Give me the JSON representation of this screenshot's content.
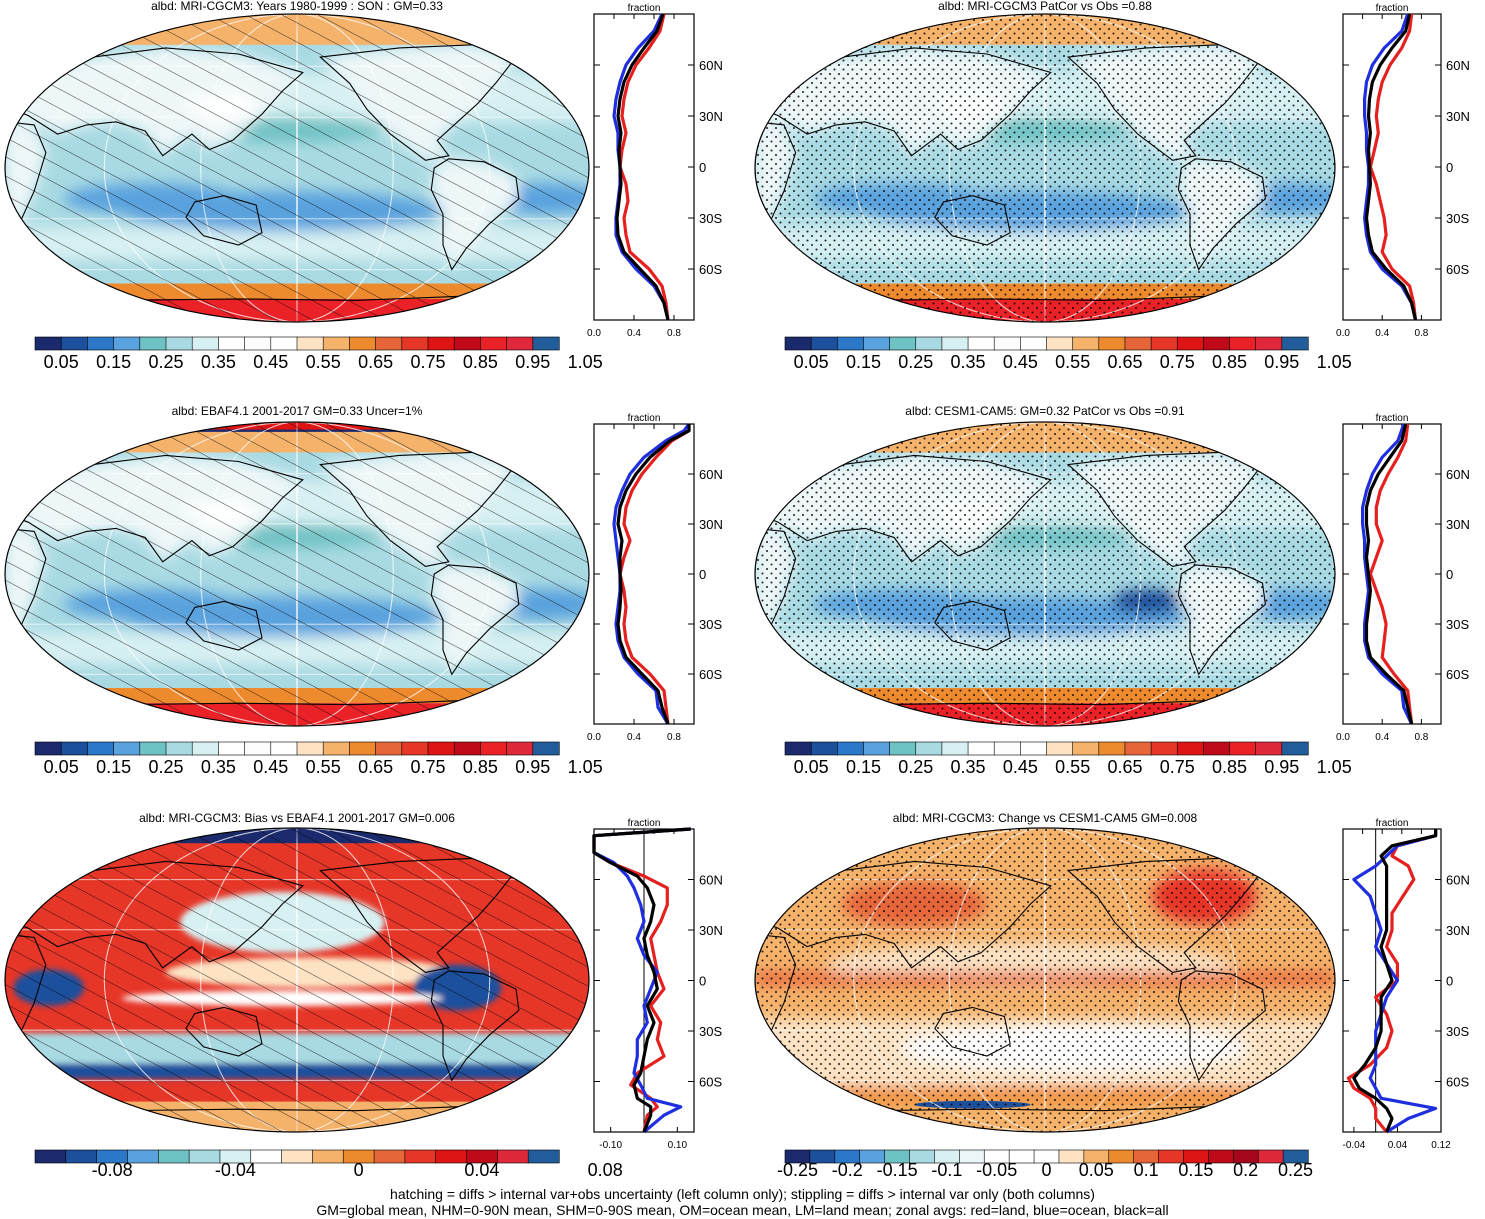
{
  "chart_data": [
    {
      "type": "heatmap",
      "title": "albd: MRI-CGCM3: Years 1980-1999 : SON : GM=0.33",
      "overlay": "hatching",
      "style": "abs",
      "colorbar": {
        "labels": [
          "0.05",
          "0.15",
          "0.25",
          "0.35",
          "0.45",
          "0.55",
          "0.65",
          "0.75",
          "0.85",
          "0.95",
          "1.05"
        ]
      },
      "zonal": {
        "type": "line",
        "title": "fraction",
        "xticks": [
          "0.0",
          "0.4",
          "0.8"
        ],
        "xlim": [
          0.0,
          1.0
        ],
        "yticks": [
          "60N",
          "30N",
          "0",
          "30S",
          "60S"
        ],
        "lat": [
          -90,
          -80,
          -70,
          -60,
          -50,
          -40,
          -30,
          -20,
          -10,
          0,
          10,
          20,
          30,
          40,
          50,
          60,
          70,
          80,
          90
        ],
        "series": [
          {
            "color": "#e6201f",
            "values": [
              0.74,
              0.72,
              0.68,
              0.55,
              0.36,
              0.32,
              0.3,
              0.34,
              0.32,
              0.26,
              0.28,
              0.32,
              0.28,
              0.3,
              0.34,
              0.42,
              0.55,
              0.66,
              0.7
            ]
          },
          {
            "color": "#1f2fe0",
            "values": [
              0.74,
              0.7,
              0.6,
              0.42,
              0.28,
              0.22,
              0.22,
              0.24,
              0.26,
              0.26,
              0.24,
              0.24,
              0.2,
              0.22,
              0.26,
              0.32,
              0.44,
              0.6,
              0.68
            ]
          },
          {
            "color": "#000000",
            "values": [
              0.74,
              0.7,
              0.62,
              0.46,
              0.3,
              0.24,
              0.23,
              0.25,
              0.27,
              0.26,
              0.25,
              0.27,
              0.24,
              0.26,
              0.3,
              0.38,
              0.5,
              0.63,
              0.69
            ]
          }
        ]
      }
    },
    {
      "type": "heatmap",
      "title": "albd: MRI-CGCM3 PatCor vs Obs =0.88",
      "overlay": "stipple",
      "style": "abs",
      "colorbar": {
        "labels": [
          "0.05",
          "0.15",
          "0.25",
          "0.35",
          "0.45",
          "0.55",
          "0.65",
          "0.75",
          "0.85",
          "0.95",
          "1.05"
        ]
      },
      "zonal": {
        "type": "line",
        "title": "fraction",
        "xticks": [
          "0.0",
          "0.4",
          "0.8"
        ],
        "xlim": [
          0.0,
          1.0
        ],
        "yticks": [
          "60N",
          "30N",
          "0",
          "30S",
          "60S"
        ],
        "lat": [
          -90,
          -80,
          -70,
          -60,
          -50,
          -40,
          -30,
          -20,
          -10,
          0,
          10,
          20,
          30,
          40,
          50,
          60,
          70,
          80,
          90
        ],
        "series": [
          {
            "color": "#e6201f",
            "values": [
              0.74,
              0.72,
              0.68,
              0.5,
              0.4,
              0.44,
              0.42,
              0.38,
              0.34,
              0.28,
              0.32,
              0.36,
              0.34,
              0.36,
              0.4,
              0.48,
              0.6,
              0.68,
              0.7
            ]
          },
          {
            "color": "#1f2fe0",
            "values": [
              0.74,
              0.7,
              0.6,
              0.4,
              0.28,
              0.24,
              0.22,
              0.24,
              0.26,
              0.26,
              0.24,
              0.24,
              0.22,
              0.22,
              0.24,
              0.3,
              0.42,
              0.6,
              0.66
            ]
          },
          {
            "color": "#000000",
            "values": [
              0.74,
              0.7,
              0.62,
              0.44,
              0.3,
              0.26,
              0.24,
              0.26,
              0.28,
              0.27,
              0.26,
              0.28,
              0.26,
              0.27,
              0.3,
              0.38,
              0.5,
              0.64,
              0.68
            ]
          }
        ]
      }
    },
    {
      "type": "heatmap",
      "title": "albd: EBAF4.1 2001-2017 GM=0.33 Uncer=1%",
      "overlay": "hatching",
      "style": "abs",
      "colorbar": {
        "labels": [
          "0.05",
          "0.15",
          "0.25",
          "0.35",
          "0.45",
          "0.55",
          "0.65",
          "0.75",
          "0.85",
          "0.95",
          "1.05"
        ]
      },
      "zonal": {
        "type": "line",
        "title": "fraction",
        "xticks": [
          "0.0",
          "0.4",
          "0.8"
        ],
        "xlim": [
          0.0,
          1.0
        ],
        "yticks": [
          "60N",
          "30N",
          "0",
          "30S",
          "60S"
        ],
        "lat": [
          -90,
          -80,
          -70,
          -60,
          -50,
          -40,
          -30,
          -20,
          -10,
          0,
          10,
          20,
          30,
          40,
          50,
          60,
          70,
          80,
          86,
          90
        ],
        "series": [
          {
            "color": "#e6201f",
            "values": [
              0.74,
              0.72,
              0.7,
              0.56,
              0.38,
              0.32,
              0.3,
              0.32,
              0.3,
              0.26,
              0.3,
              0.36,
              0.3,
              0.32,
              0.38,
              0.48,
              0.62,
              0.78,
              0.95,
              0.95
            ]
          },
          {
            "color": "#1f2fe0",
            "values": [
              0.74,
              0.64,
              0.62,
              0.44,
              0.3,
              0.24,
              0.22,
              0.24,
              0.26,
              0.26,
              0.24,
              0.22,
              0.2,
              0.22,
              0.28,
              0.36,
              0.5,
              0.72,
              0.9,
              0.95
            ]
          },
          {
            "color": "#000000",
            "values": [
              0.74,
              0.68,
              0.64,
              0.48,
              0.32,
              0.26,
              0.24,
              0.26,
              0.27,
              0.26,
              0.26,
              0.28,
              0.24,
              0.26,
              0.32,
              0.42,
              0.56,
              0.76,
              0.95,
              0.95
            ]
          }
        ]
      }
    },
    {
      "type": "heatmap",
      "title": "albd: CESM1-CAM5: GM=0.32 PatCor vs Obs =0.91",
      "overlay": "stipple",
      "style": "abs",
      "colorbar": {
        "labels": [
          "0.05",
          "0.15",
          "0.25",
          "0.35",
          "0.45",
          "0.55",
          "0.65",
          "0.75",
          "0.85",
          "0.95",
          "1.05"
        ]
      },
      "zonal": {
        "type": "line",
        "title": "fraction",
        "xticks": [
          "0.0",
          "0.4",
          "0.8"
        ],
        "xlim": [
          0.0,
          1.0
        ],
        "yticks": [
          "60N",
          "30N",
          "0",
          "30S",
          "60S"
        ],
        "lat": [
          -90,
          -80,
          -70,
          -60,
          -50,
          -40,
          -30,
          -20,
          -10,
          0,
          10,
          20,
          30,
          40,
          50,
          60,
          70,
          80,
          90
        ],
        "series": [
          {
            "color": "#e6201f",
            "values": [
              0.7,
              0.68,
              0.66,
              0.52,
              0.4,
              0.42,
              0.44,
              0.4,
              0.34,
              0.28,
              0.34,
              0.4,
              0.34,
              0.34,
              0.38,
              0.46,
              0.56,
              0.64,
              0.66
            ]
          },
          {
            "color": "#1f2fe0",
            "values": [
              0.7,
              0.62,
              0.6,
              0.4,
              0.26,
              0.22,
              0.22,
              0.24,
              0.26,
              0.24,
              0.22,
              0.22,
              0.2,
              0.2,
              0.24,
              0.3,
              0.4,
              0.56,
              0.62
            ]
          },
          {
            "color": "#000000",
            "values": [
              0.7,
              0.66,
              0.62,
              0.44,
              0.28,
              0.24,
              0.24,
              0.26,
              0.28,
              0.26,
              0.24,
              0.26,
              0.24,
              0.24,
              0.28,
              0.36,
              0.48,
              0.6,
              0.64
            ]
          }
        ]
      }
    },
    {
      "type": "heatmap",
      "title": "albd: MRI-CGCM3: Bias vs EBAF4.1 2001-2017  GM=0.006",
      "overlay": "hatching",
      "style": "bias",
      "colorbar": {
        "labels": [
          "-0.08",
          "-0.04",
          "0",
          "0.04",
          "0.08"
        ]
      },
      "zonal": {
        "type": "line",
        "title": "fraction",
        "xticks": [
          "-0.10",
          "0.10"
        ],
        "xlim": [
          -0.15,
          0.15
        ],
        "yticks": [
          "60N",
          "30N",
          "0",
          "30S",
          "60S"
        ],
        "lat": [
          -90,
          -80,
          -75,
          -70,
          -62,
          -55,
          -45,
          -35,
          -25,
          -15,
          -5,
          5,
          15,
          25,
          35,
          45,
          55,
          62,
          70,
          76,
          80,
          86,
          90
        ],
        "series": [
          {
            "color": "#e6201f",
            "values": [
              0.0,
              0.01,
              0.04,
              0.02,
              -0.04,
              -0.02,
              0.06,
              0.04,
              0.05,
              0.02,
              0.06,
              0.04,
              0.03,
              0.02,
              0.05,
              0.07,
              0.07,
              0.0,
              -0.1,
              -0.15,
              -0.16,
              -0.15,
              0.14
            ]
          },
          {
            "color": "#1f2fe0",
            "values": [
              0.0,
              0.06,
              0.11,
              0.01,
              -0.01,
              -0.03,
              -0.02,
              -0.02,
              0.01,
              0.0,
              0.02,
              0.04,
              0.0,
              -0.02,
              0.0,
              -0.01,
              -0.03,
              -0.05,
              -0.09,
              -0.15,
              -0.16,
              -0.15,
              0.14
            ]
          },
          {
            "color": "#000000",
            "values": [
              0.0,
              0.02,
              0.02,
              -0.02,
              -0.03,
              -0.01,
              0.0,
              0.01,
              0.03,
              0.01,
              0.04,
              0.03,
              0.01,
              0.0,
              0.02,
              0.03,
              0.01,
              -0.02,
              -0.1,
              -0.15,
              -0.16,
              -0.15,
              0.14
            ]
          }
        ]
      }
    },
    {
      "type": "heatmap",
      "title": "albd: MRI-CGCM3: Change vs CESM1-CAM5 GM=0.008",
      "overlay": "stipple",
      "style": "change",
      "colorbar": {
        "labels": [
          "-0.25",
          "-0.2",
          "-0.15",
          "-0.1",
          "-0.05",
          "0",
          "0.05",
          "0.1",
          "0.15",
          "0.2",
          "0.25"
        ]
      },
      "zonal": {
        "type": "line",
        "title": "fraction",
        "xticks": [
          "-0.04",
          "0.04",
          "0.12"
        ],
        "xlim": [
          -0.06,
          0.12
        ],
        "yticks": [
          "60N",
          "30N",
          "0",
          "30S",
          "60S"
        ],
        "lat": [
          -90,
          -82,
          -76,
          -70,
          -64,
          -58,
          -50,
          -40,
          -30,
          -20,
          -10,
          0,
          10,
          20,
          30,
          40,
          50,
          60,
          68,
          74,
          80,
          86,
          90
        ],
        "series": [
          {
            "color": "#e6201f",
            "values": [
              0.02,
              0.0,
              0.0,
              -0.01,
              -0.04,
              -0.05,
              -0.01,
              0.02,
              0.03,
              0.02,
              0.0,
              0.04,
              0.04,
              0.02,
              0.03,
              0.03,
              0.05,
              0.07,
              0.06,
              0.03,
              0.04,
              0.11,
              0.11
            ]
          },
          {
            "color": "#1f2fe0",
            "values": [
              0.02,
              0.06,
              0.11,
              0.01,
              0.0,
              -0.01,
              0.0,
              0.0,
              0.0,
              0.01,
              0.02,
              0.04,
              0.02,
              0.0,
              0.01,
              0.0,
              -0.01,
              -0.04,
              0.0,
              0.02,
              0.04,
              0.11,
              0.11
            ]
          },
          {
            "color": "#000000",
            "values": [
              0.02,
              0.03,
              0.02,
              0.0,
              -0.03,
              -0.04,
              -0.02,
              0.0,
              0.01,
              0.01,
              0.01,
              0.03,
              0.02,
              0.01,
              0.02,
              0.02,
              0.02,
              0.02,
              0.02,
              0.01,
              0.03,
              0.11,
              0.11
            ]
          }
        ]
      }
    }
  ],
  "footer": {
    "line1": "hatching = diffs > internal var+obs uncertainty (left column only); stippling = diffs > internal var only (both columns)",
    "line2": "GM=global mean, NHM=0-90N mean, SHM=0-90S mean, OM=ocean mean, LM=land mean; zonal avgs: red=land, blue=ocean, black=all"
  }
}
